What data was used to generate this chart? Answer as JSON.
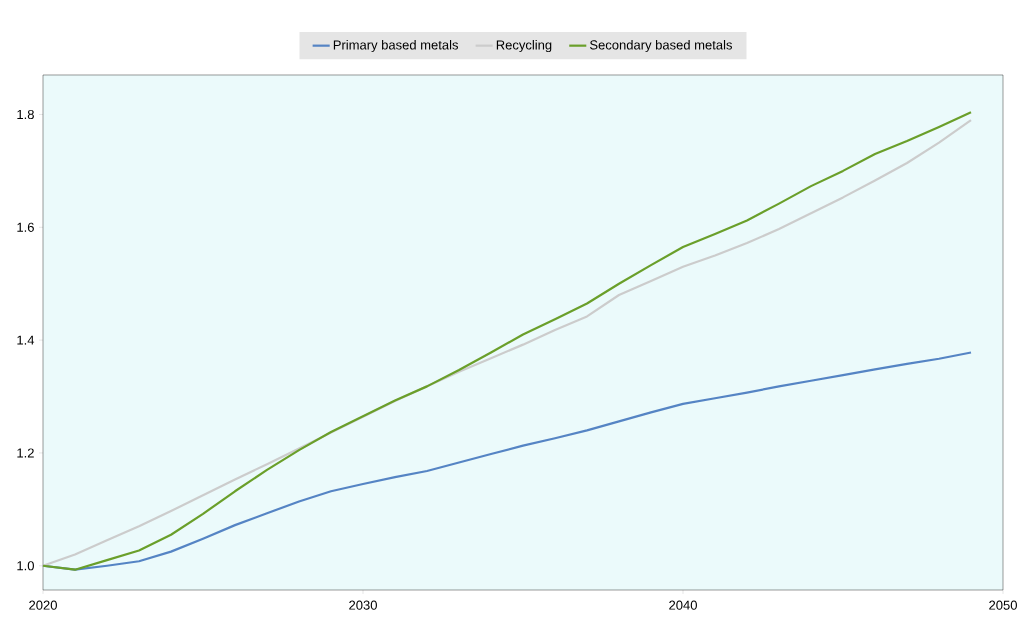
{
  "chart_data": {
    "type": "line",
    "x": [
      2020,
      2021,
      2022,
      2023,
      2024,
      2025,
      2026,
      2027,
      2028,
      2029,
      2030,
      2031,
      2032,
      2033,
      2034,
      2035,
      2036,
      2037,
      2038,
      2039,
      2040,
      2041,
      2042,
      2043,
      2044,
      2045,
      2046,
      2047,
      2048,
      2049
    ],
    "series": [
      {
        "name": "Primary based metals",
        "color": "#5584c4",
        "values": [
          1.0,
          0.993,
          1.0,
          1.008,
          1.025,
          1.048,
          1.072,
          1.093,
          1.114,
          1.132,
          1.145,
          1.157,
          1.168,
          1.183,
          1.198,
          1.213,
          1.226,
          1.24,
          1.256,
          1.272,
          1.287,
          1.297,
          1.307,
          1.318,
          1.328,
          1.338,
          1.348,
          1.358,
          1.367,
          1.378
        ]
      },
      {
        "name": "Recycling",
        "color": "#cccccc",
        "values": [
          1.0,
          1.02,
          1.045,
          1.07,
          1.097,
          1.125,
          1.153,
          1.18,
          1.208,
          1.236,
          1.264,
          1.292,
          1.318,
          1.344,
          1.368,
          1.392,
          1.418,
          1.442,
          1.48,
          1.505,
          1.53,
          1.55,
          1.572,
          1.597,
          1.625,
          1.653,
          1.683,
          1.714,
          1.75,
          1.79
        ]
      },
      {
        "name": "Secondary based metals",
        "color": "#6a9f2a",
        "values": [
          1.0,
          0.993,
          1.01,
          1.027,
          1.055,
          1.092,
          1.132,
          1.17,
          1.205,
          1.237,
          1.265,
          1.293,
          1.318,
          1.347,
          1.378,
          1.41,
          1.437,
          1.465,
          1.5,
          1.533,
          1.565,
          1.588,
          1.612,
          1.642,
          1.673,
          1.7,
          1.73,
          1.753,
          1.778,
          1.804
        ]
      }
    ],
    "xlim": [
      2020,
      2050
    ],
    "xticks": [
      2020,
      2030,
      2040,
      2050
    ],
    "ylim": [
      0.957,
      1.87
    ],
    "yticks": [
      {
        "value": 1,
        "label": "1.0"
      },
      1.2,
      1.4,
      1.6,
      1.8
    ],
    "legend": "top"
  }
}
